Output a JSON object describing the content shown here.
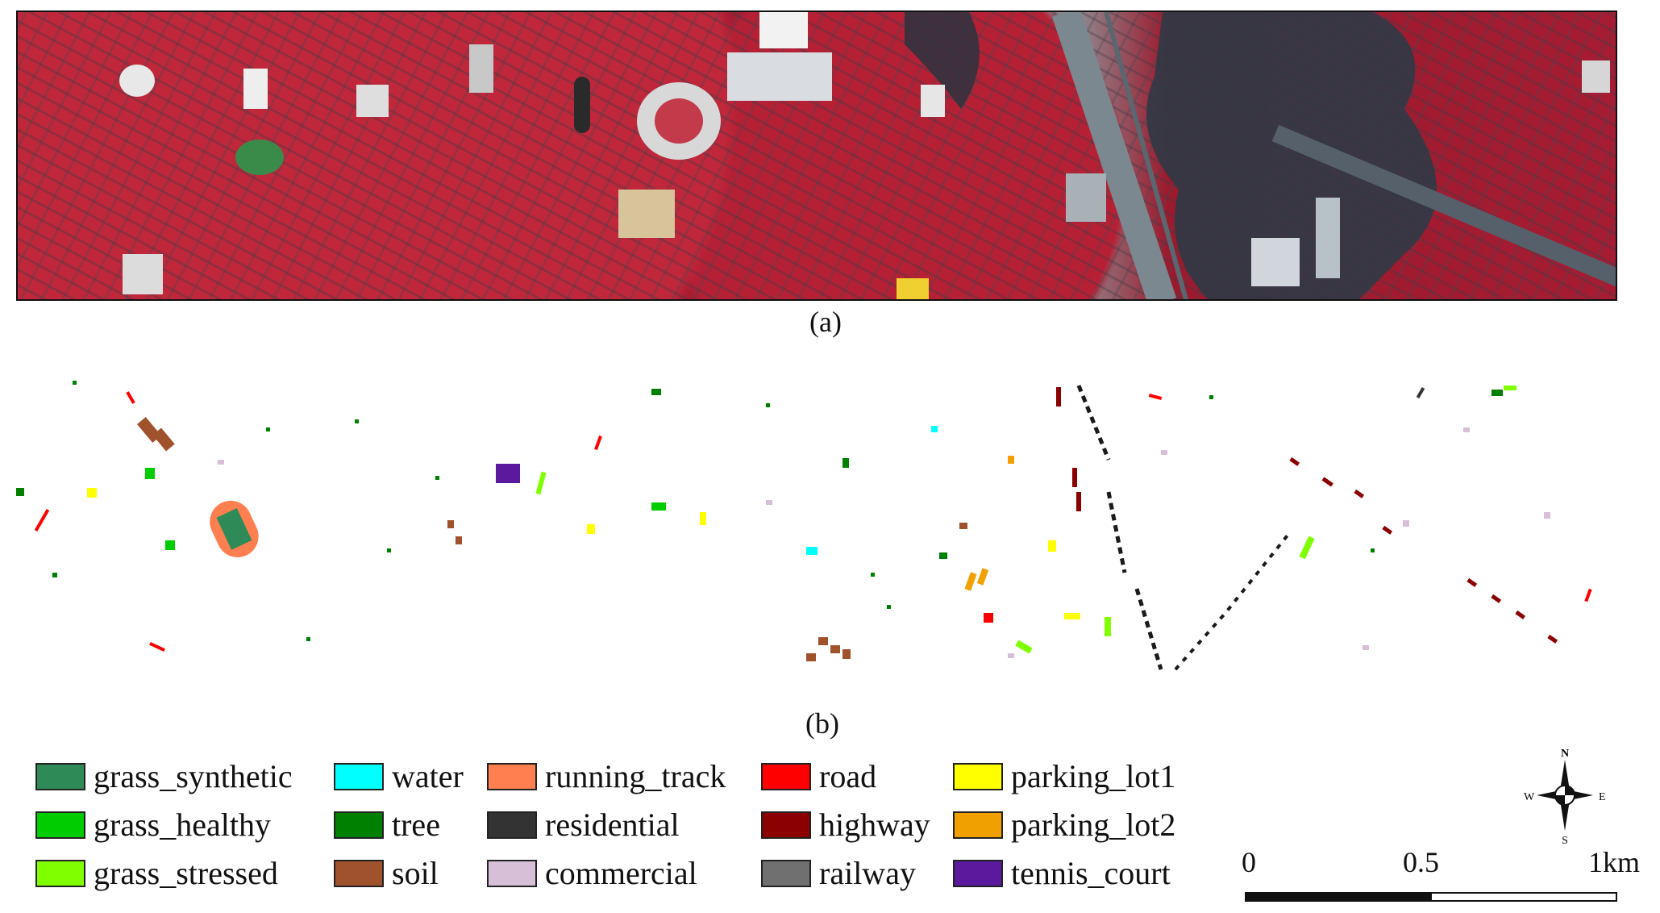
{
  "captions": {
    "a": "(a)",
    "b": "(b)"
  },
  "legend": [
    {
      "label": "grass_synthetic",
      "color": "#2e8b57"
    },
    {
      "label": "grass_healthy",
      "color": "#00cc00"
    },
    {
      "label": "grass_stressed",
      "color": "#80ff00"
    },
    {
      "label": "water",
      "color": "#00ffff"
    },
    {
      "label": "tree",
      "color": "#008000"
    },
    {
      "label": "soil",
      "color": "#a0522d"
    },
    {
      "label": "running_track",
      "color": "#ff7f50"
    },
    {
      "label": "residential",
      "color": "#333333"
    },
    {
      "label": "commercial",
      "color": "#d8bfd8"
    },
    {
      "label": "road",
      "color": "#ff0000"
    },
    {
      "label": "highway",
      "color": "#8b0000"
    },
    {
      "label": "railway",
      "color": "#707070"
    },
    {
      "label": "parking_lot1",
      "color": "#ffff00"
    },
    {
      "label": "parking_lot2",
      "color": "#f0a000"
    },
    {
      "label": "tennis_court",
      "color": "#5b1a9e"
    }
  ],
  "compass": {
    "n": "N",
    "s": "S",
    "e": "E",
    "w": "W"
  },
  "scale": {
    "labels": [
      "0",
      "0.5",
      "1km"
    ]
  }
}
